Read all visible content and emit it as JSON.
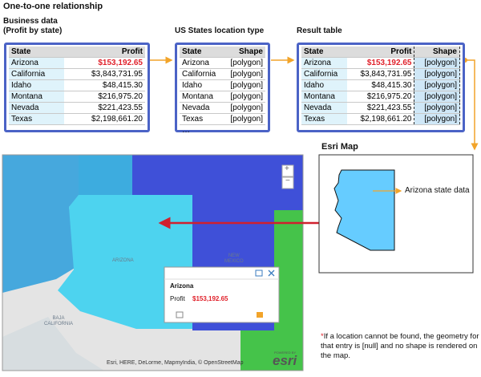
{
  "title": "One-to-one relationship",
  "business": {
    "title": [
      "Business data",
      "(Profit by state)"
    ],
    "header": [
      "State",
      "Profit"
    ],
    "rows": [
      [
        "Arizona",
        "$153,192.65"
      ],
      [
        "California",
        "$3,843,731.95"
      ],
      [
        "Idaho",
        "$48,415.30"
      ],
      [
        "Montana",
        "$216,975.20"
      ],
      [
        "Nevada",
        "$221,423.55"
      ],
      [
        "Texas",
        "$2,198,661.20"
      ]
    ]
  },
  "location": {
    "title": "US States location type",
    "header": [
      "State",
      "Shape"
    ],
    "rows": [
      [
        "Arizona",
        "[polygon]"
      ],
      [
        "California",
        "[polygon]"
      ],
      [
        "Idaho",
        "[polygon]"
      ],
      [
        "Montana",
        "[polygon]"
      ],
      [
        "Nevada",
        "[polygon]"
      ],
      [
        "Texas",
        "[polygon]"
      ]
    ],
    "more": "…"
  },
  "result": {
    "title": "Result table",
    "header": [
      "State",
      "Profit",
      "Shape"
    ],
    "rows": [
      [
        "Arizona",
        "$153,192.65",
        "[polygon]"
      ],
      [
        "California",
        "$3,843,731.95",
        "[polygon]"
      ],
      [
        "Idaho",
        "$48,415.30",
        "[polygon]"
      ],
      [
        "Montana",
        "$216,975.20",
        "[polygon]"
      ],
      [
        "Nevada",
        "$221,423.55",
        "[polygon]"
      ],
      [
        "Texas",
        "$2,198,661.20",
        "[polygon]"
      ]
    ]
  },
  "esri_map": {
    "title": "Esri Map",
    "annotation": "Arizona state data"
  },
  "map": {
    "labels": {
      "arizona": "ARIZONA",
      "new_mexico": [
        "NEW",
        "MEXICO"
      ],
      "baja": [
        "BAJA",
        "CALIFORNIA"
      ]
    },
    "zoom_in": "+",
    "zoom_out": "−",
    "popup": {
      "title": "Arizona",
      "field": "Profit",
      "value": "$153,192.65"
    },
    "attribution": "Esri, HERE, DeLorme, MapmyIndia, © OpenStreetMap",
    "logo_caption": "POWERED BY",
    "logo": "esri"
  },
  "footnote": {
    "marker": "*",
    "text": "If a location cannot be found, the geometry for that entry is [null] and no shape is rendered on the map."
  }
}
